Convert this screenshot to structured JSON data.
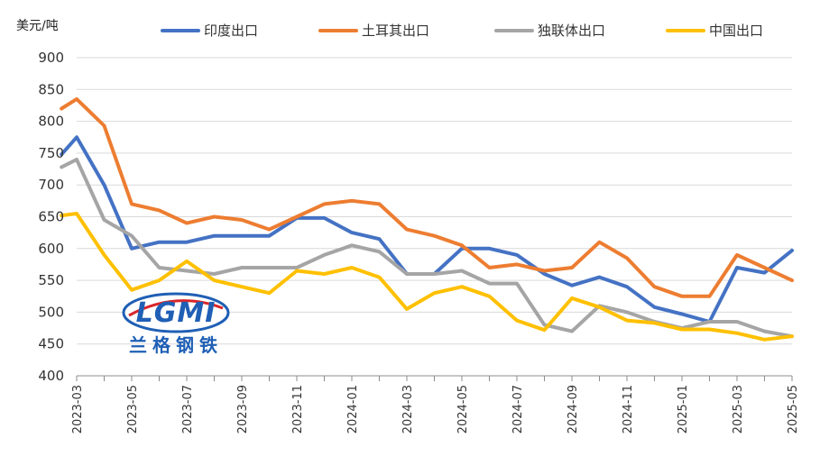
{
  "chart_data": {
    "type": "line",
    "y_unit_label": "美元/吨",
    "ylim": [
      400,
      900
    ],
    "yticks": [
      400,
      450,
      500,
      550,
      600,
      650,
      700,
      750,
      800,
      850,
      900
    ],
    "grid": true,
    "legend_position": "top",
    "x": [
      "2023-03",
      "2023-04",
      "2023-05",
      "2023-06",
      "2023-07",
      "2023-08",
      "2023-09",
      "2023-10",
      "2023-11",
      "2023-12",
      "2024-01",
      "2024-02",
      "2024-03",
      "2024-04",
      "2024-05",
      "2024-06",
      "2024-07",
      "2024-08",
      "2024-09",
      "2024-10",
      "2024-11",
      "2024-12",
      "2025-01",
      "2025-02",
      "2025-03",
      "2025-04",
      "2025-05"
    ],
    "x_tick_labels": [
      "2023-03",
      "2023-05",
      "2023-07",
      "2023-09",
      "2023-11",
      "2024-01",
      "2024-03",
      "2024-05",
      "2024-07",
      "2024-09",
      "2024-11",
      "2025-01",
      "2025-03",
      "2025-05"
    ],
    "series": [
      {
        "name": "印度出口",
        "color": "#4472C4",
        "values": [
          [
            748,
            775
          ],
          700,
          600,
          610,
          610,
          620,
          620,
          620,
          648,
          648,
          625,
          615,
          560,
          560,
          600,
          600,
          590,
          560,
          542,
          555,
          540,
          508,
          497,
          485,
          570,
          562,
          597
        ]
      },
      {
        "name": "土耳其出口",
        "color": "#ED7D31",
        "values": [
          [
            820,
            835
          ],
          793,
          670,
          660,
          640,
          650,
          645,
          630,
          650,
          670,
          675,
          670,
          630,
          620,
          605,
          570,
          575,
          565,
          570,
          610,
          585,
          540,
          525,
          525,
          590,
          570,
          550
        ]
      },
      {
        "name": "独联体出口",
        "color": "#A5A5A5",
        "values": [
          [
            728,
            740
          ],
          645,
          620,
          570,
          565,
          560,
          570,
          570,
          570,
          590,
          605,
          595,
          560,
          560,
          565,
          545,
          545,
          480,
          470,
          510,
          500,
          485,
          475,
          485,
          485,
          470,
          462
        ]
      },
      {
        "name": "中国出口",
        "color": "#FFC000",
        "values": [
          [
            652,
            655
          ],
          590,
          535,
          550,
          580,
          550,
          540,
          530,
          565,
          560,
          570,
          555,
          505,
          530,
          540,
          525,
          487,
          472,
          522,
          508,
          487,
          483,
          473,
          473,
          467,
          457,
          462
        ]
      }
    ]
  },
  "logo": {
    "wordmark": "LGMI",
    "tagline": "兰格钢铁"
  }
}
